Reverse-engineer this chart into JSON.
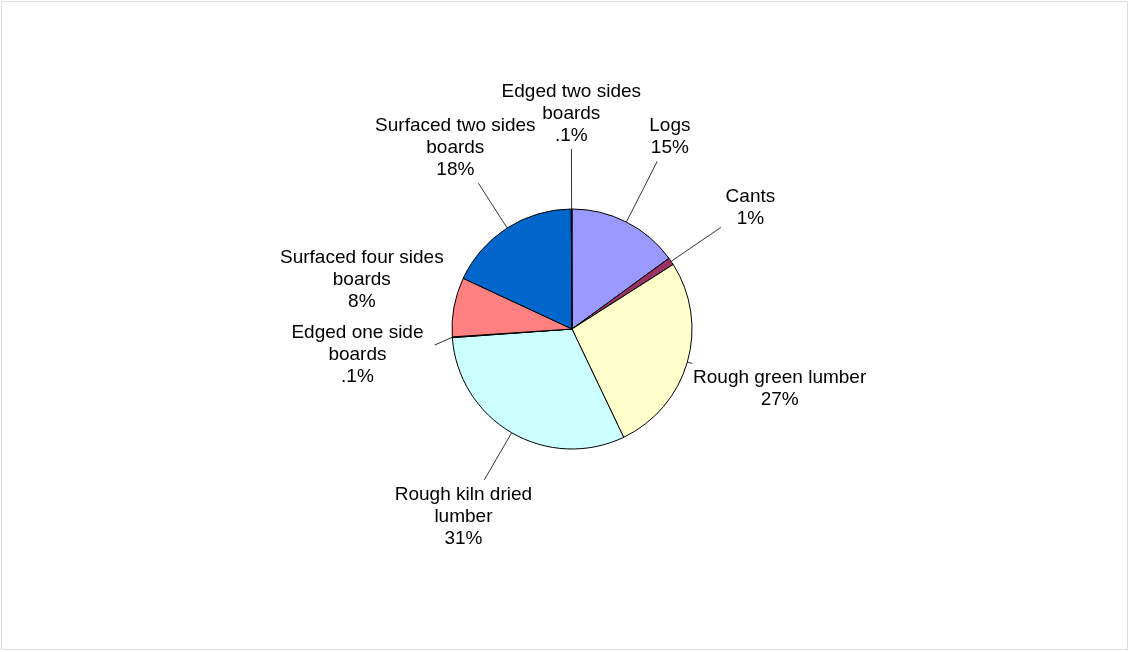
{
  "chart_data": {
    "type": "pie",
    "categories": [
      "Logs",
      "Cants",
      "Rough green lumber",
      "Rough kiln dried lumber",
      "Edged one side boards",
      "Surfaced four sides boards",
      "Surfaced two sides boards",
      "Edged two sides boards"
    ],
    "values": [
      15,
      1,
      27,
      31,
      0.1,
      8,
      18,
      0.1
    ],
    "value_labels": [
      "15%",
      "1%",
      "27%",
      "31%",
      ".1%",
      "8%",
      "18%",
      ".1%"
    ],
    "colors": [
      "#9999ff",
      "#993366",
      "#ffffcc",
      "#ccffff",
      "#660066",
      "#ff8080",
      "#0066cc",
      "#000080"
    ]
  }
}
